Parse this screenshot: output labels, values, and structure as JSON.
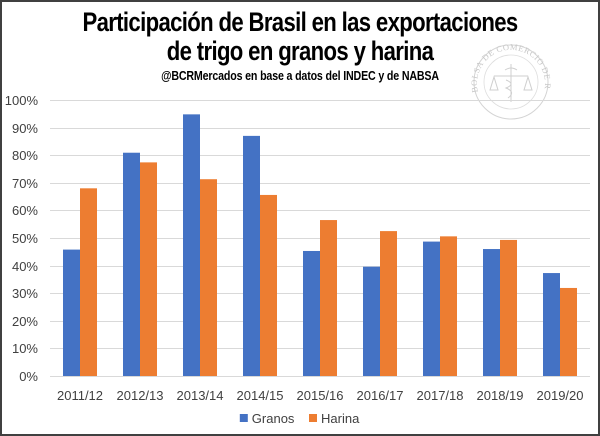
{
  "chart_data": {
    "type": "bar",
    "title": "Participación de Brasil en las exportaciones de trigo en granos y harina",
    "title_lines": [
      "Participación de Brasil en las exportaciones",
      "de trigo en granos y harina"
    ],
    "subtitle": "@BCRMercados  en base a datos del INDEC y de NABSA",
    "watermark": "BOLSA DE COMERCIO DE ROSARIO",
    "xlabel": "",
    "ylabel": "",
    "ylim": [
      0,
      100
    ],
    "y_tick_step": 10,
    "y_ticks": [
      "0%",
      "10%",
      "20%",
      "30%",
      "40%",
      "50%",
      "60%",
      "70%",
      "80%",
      "90%",
      "100%"
    ],
    "grid": true,
    "legend_position": "bottom",
    "categories": [
      "2011/12",
      "2012/13",
      "2013/14",
      "2014/15",
      "2015/16",
      "2016/17",
      "2017/18",
      "2018/19",
      "2019/20"
    ],
    "series": [
      {
        "name": "Granos",
        "color": "#4472C4",
        "values": [
          45.8,
          80.9,
          94.8,
          87.0,
          45.3,
          39.6,
          48.7,
          46.0,
          37.3
        ]
      },
      {
        "name": "Harina",
        "color": "#ED7D31",
        "values": [
          68.0,
          77.4,
          71.3,
          65.6,
          56.5,
          52.5,
          50.6,
          49.3,
          31.9
        ]
      }
    ],
    "units": "%"
  }
}
